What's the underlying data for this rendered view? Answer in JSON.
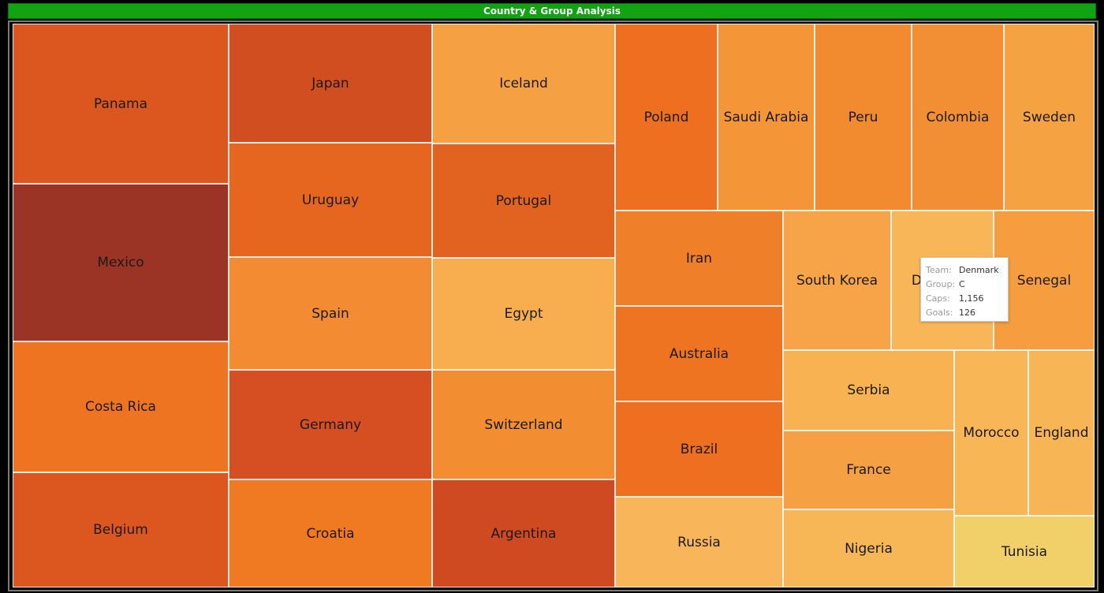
{
  "title": "Country & Group Analysis",
  "chart_data": {
    "type": "treemap",
    "tiles": [
      {
        "label": "Panama",
        "color": "#dc5620"
      },
      {
        "label": "Mexico",
        "color": "#9c3425"
      },
      {
        "label": "Costa Rica",
        "color": "#ee7422"
      },
      {
        "label": "Belgium",
        "color": "#dc5620"
      },
      {
        "label": "Japan",
        "color": "#d14e21"
      },
      {
        "label": "Uruguay",
        "color": "#e6661f"
      },
      {
        "label": "Spain",
        "color": "#f28b32"
      },
      {
        "label": "Germany",
        "color": "#d64f22"
      },
      {
        "label": "Croatia",
        "color": "#f07a22"
      },
      {
        "label": "Iceland",
        "color": "#f5a143"
      },
      {
        "label": "Portugal",
        "color": "#e26220"
      },
      {
        "label": "Egypt",
        "color": "#f8ae4e"
      },
      {
        "label": "Switzerland",
        "color": "#f28d32"
      },
      {
        "label": "Argentina",
        "color": "#cf4a21"
      },
      {
        "label": "Poland",
        "color": "#ee6f1f"
      },
      {
        "label": "Saudi Arabia",
        "color": "#f49538"
      },
      {
        "label": "Peru",
        "color": "#f28a30"
      },
      {
        "label": "Colombia",
        "color": "#f28f34"
      },
      {
        "label": "Sweden",
        "color": "#f5a242"
      },
      {
        "label": "Iran",
        "color": "#f07f29"
      },
      {
        "label": "Australia",
        "color": "#ee7422"
      },
      {
        "label": "Brazil",
        "color": "#ee6f1f"
      },
      {
        "label": "Russia",
        "color": "#f8b55a"
      },
      {
        "label": "South Korea",
        "color": "#f6a447"
      },
      {
        "label": "Denmark",
        "color": "#f9b659"
      },
      {
        "label": "Senegal",
        "color": "#f59d3f"
      },
      {
        "label": "Serbia",
        "color": "#f8b252"
      },
      {
        "label": "France",
        "color": "#f5a143"
      },
      {
        "label": "Nigeria",
        "color": "#f8b757"
      },
      {
        "label": "Morocco",
        "color": "#f8b657"
      },
      {
        "label": "England",
        "color": "#f8b556"
      },
      {
        "label": "Tunisia",
        "color": "#f1d06a"
      }
    ]
  },
  "tooltip": {
    "team_key": "Team:",
    "team": "Denmark",
    "group_key": "Group:",
    "group": "C",
    "caps_key": "Caps:",
    "caps": "1,156",
    "goals_key": "Goals:",
    "goals": "126"
  }
}
